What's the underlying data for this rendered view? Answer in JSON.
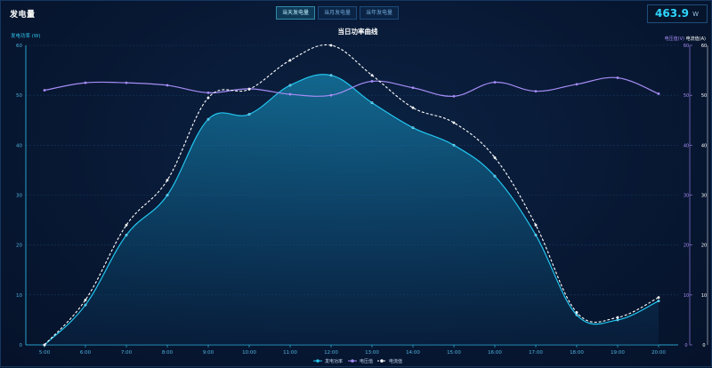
{
  "panel": {
    "title": "发电量"
  },
  "tabs": [
    "当天发电量",
    "当月发电量",
    "当年发电量"
  ],
  "active_tab": 0,
  "current_power": {
    "value": "463.9",
    "unit": "W"
  },
  "chart_data": {
    "type": "line",
    "title": "当日功率曲线",
    "categories": [
      "5:00",
      "6:00",
      "7:00",
      "8:00",
      "9:00",
      "10:00",
      "11:00",
      "12:00",
      "13:00",
      "14:00",
      "15:00",
      "16:00",
      "17:00",
      "18:00",
      "19:00",
      "20:00"
    ],
    "y_left": {
      "label": "发电功率 (W)",
      "ticks": [
        "0",
        "10",
        "20",
        "30",
        "40",
        "50",
        "60"
      ],
      "range": [
        0,
        60
      ]
    },
    "y_right": {
      "label_voltage": "电压值(V)",
      "label_current": "电流值(A)",
      "ticks": [
        "0",
        "10",
        "20",
        "30",
        "40",
        "50",
        "60"
      ],
      "range": [
        0,
        60
      ]
    },
    "grid": true,
    "legend_position": "bottom",
    "series": [
      {
        "name": "发电功率",
        "axis": "left",
        "style": "area",
        "color": "#22c6f0",
        "values": [
          0,
          8,
          22,
          30,
          45.2,
          46.2,
          52,
          54,
          48.5,
          43.5,
          40,
          33.8,
          22,
          6,
          5,
          8.8
        ]
      },
      {
        "name": "电压值",
        "axis": "right",
        "style": "line",
        "color": "#a68cf5",
        "values": [
          51,
          52.5,
          52.5,
          52,
          50.5,
          51.3,
          50.2,
          50,
          52.8,
          51.5,
          49.8,
          52.6,
          50.8,
          52.2,
          53.5,
          50.3
        ]
      },
      {
        "name": "电流值",
        "axis": "right",
        "style": "dashed",
        "color": "#ffffff",
        "values": [
          0,
          9,
          24,
          33,
          49.5,
          51.2,
          57,
          60,
          54,
          47.5,
          44.5,
          37.5,
          24,
          6.5,
          5.5,
          9.5
        ]
      }
    ]
  }
}
